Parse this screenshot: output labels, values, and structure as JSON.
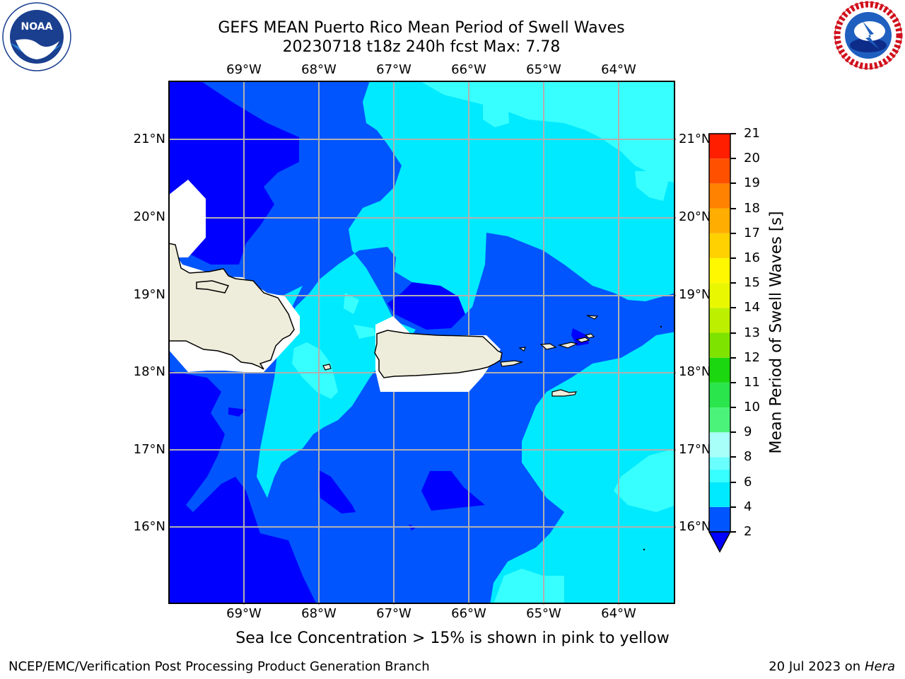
{
  "header": {
    "title_line1": "GEFS MEAN Puerto Rico Mean Period of Swell Waves",
    "title_line2": "20230718 t18z 240h fcst   Max: 7.78"
  },
  "map": {
    "lon_labels": [
      "69°W",
      "68°W",
      "67°W",
      "66°W",
      "65°W",
      "64°W"
    ],
    "lat_labels": [
      "21°N",
      "20°N",
      "19°N",
      "18°N",
      "17°N",
      "16°N"
    ],
    "land_color": "#eeecda",
    "masked_color": "#ffffff",
    "grid_color": "#b0b0b0"
  },
  "colorbar": {
    "label": "Mean Period of Swell Waves [s]",
    "ticks": [
      "2",
      "4",
      "6",
      "8",
      "9",
      "10",
      "11",
      "12",
      "13",
      "14",
      "15",
      "16",
      "17",
      "18",
      "19",
      "20",
      "21"
    ],
    "colors": [
      "#0055ff",
      "#00eaff",
      "#38ffff",
      "#6affff",
      "#a8fffa",
      "#4bf37b",
      "#2ae54b",
      "#1bd70f",
      "#7fe300",
      "#bcf000",
      "#e9f800",
      "#fff800",
      "#ffd100",
      "#ffad00",
      "#ff8200",
      "#ff5000",
      "#ff1e00",
      "#ff0000"
    ],
    "under_color": "#0000ff"
  },
  "caption": "Sea Ice Concentration > 15% is shown in pink to yellow",
  "footer": {
    "left": "NCEP/EMC/Verification Post Processing Product Generation Branch",
    "date": "20 Jul 2023 on ",
    "machine": "Hera"
  },
  "logos": {
    "left": "noaa-logo",
    "left_text": "NOAA",
    "right": "nws-logo",
    "right_text": "NATIONAL WEATHER SERVICE"
  }
}
